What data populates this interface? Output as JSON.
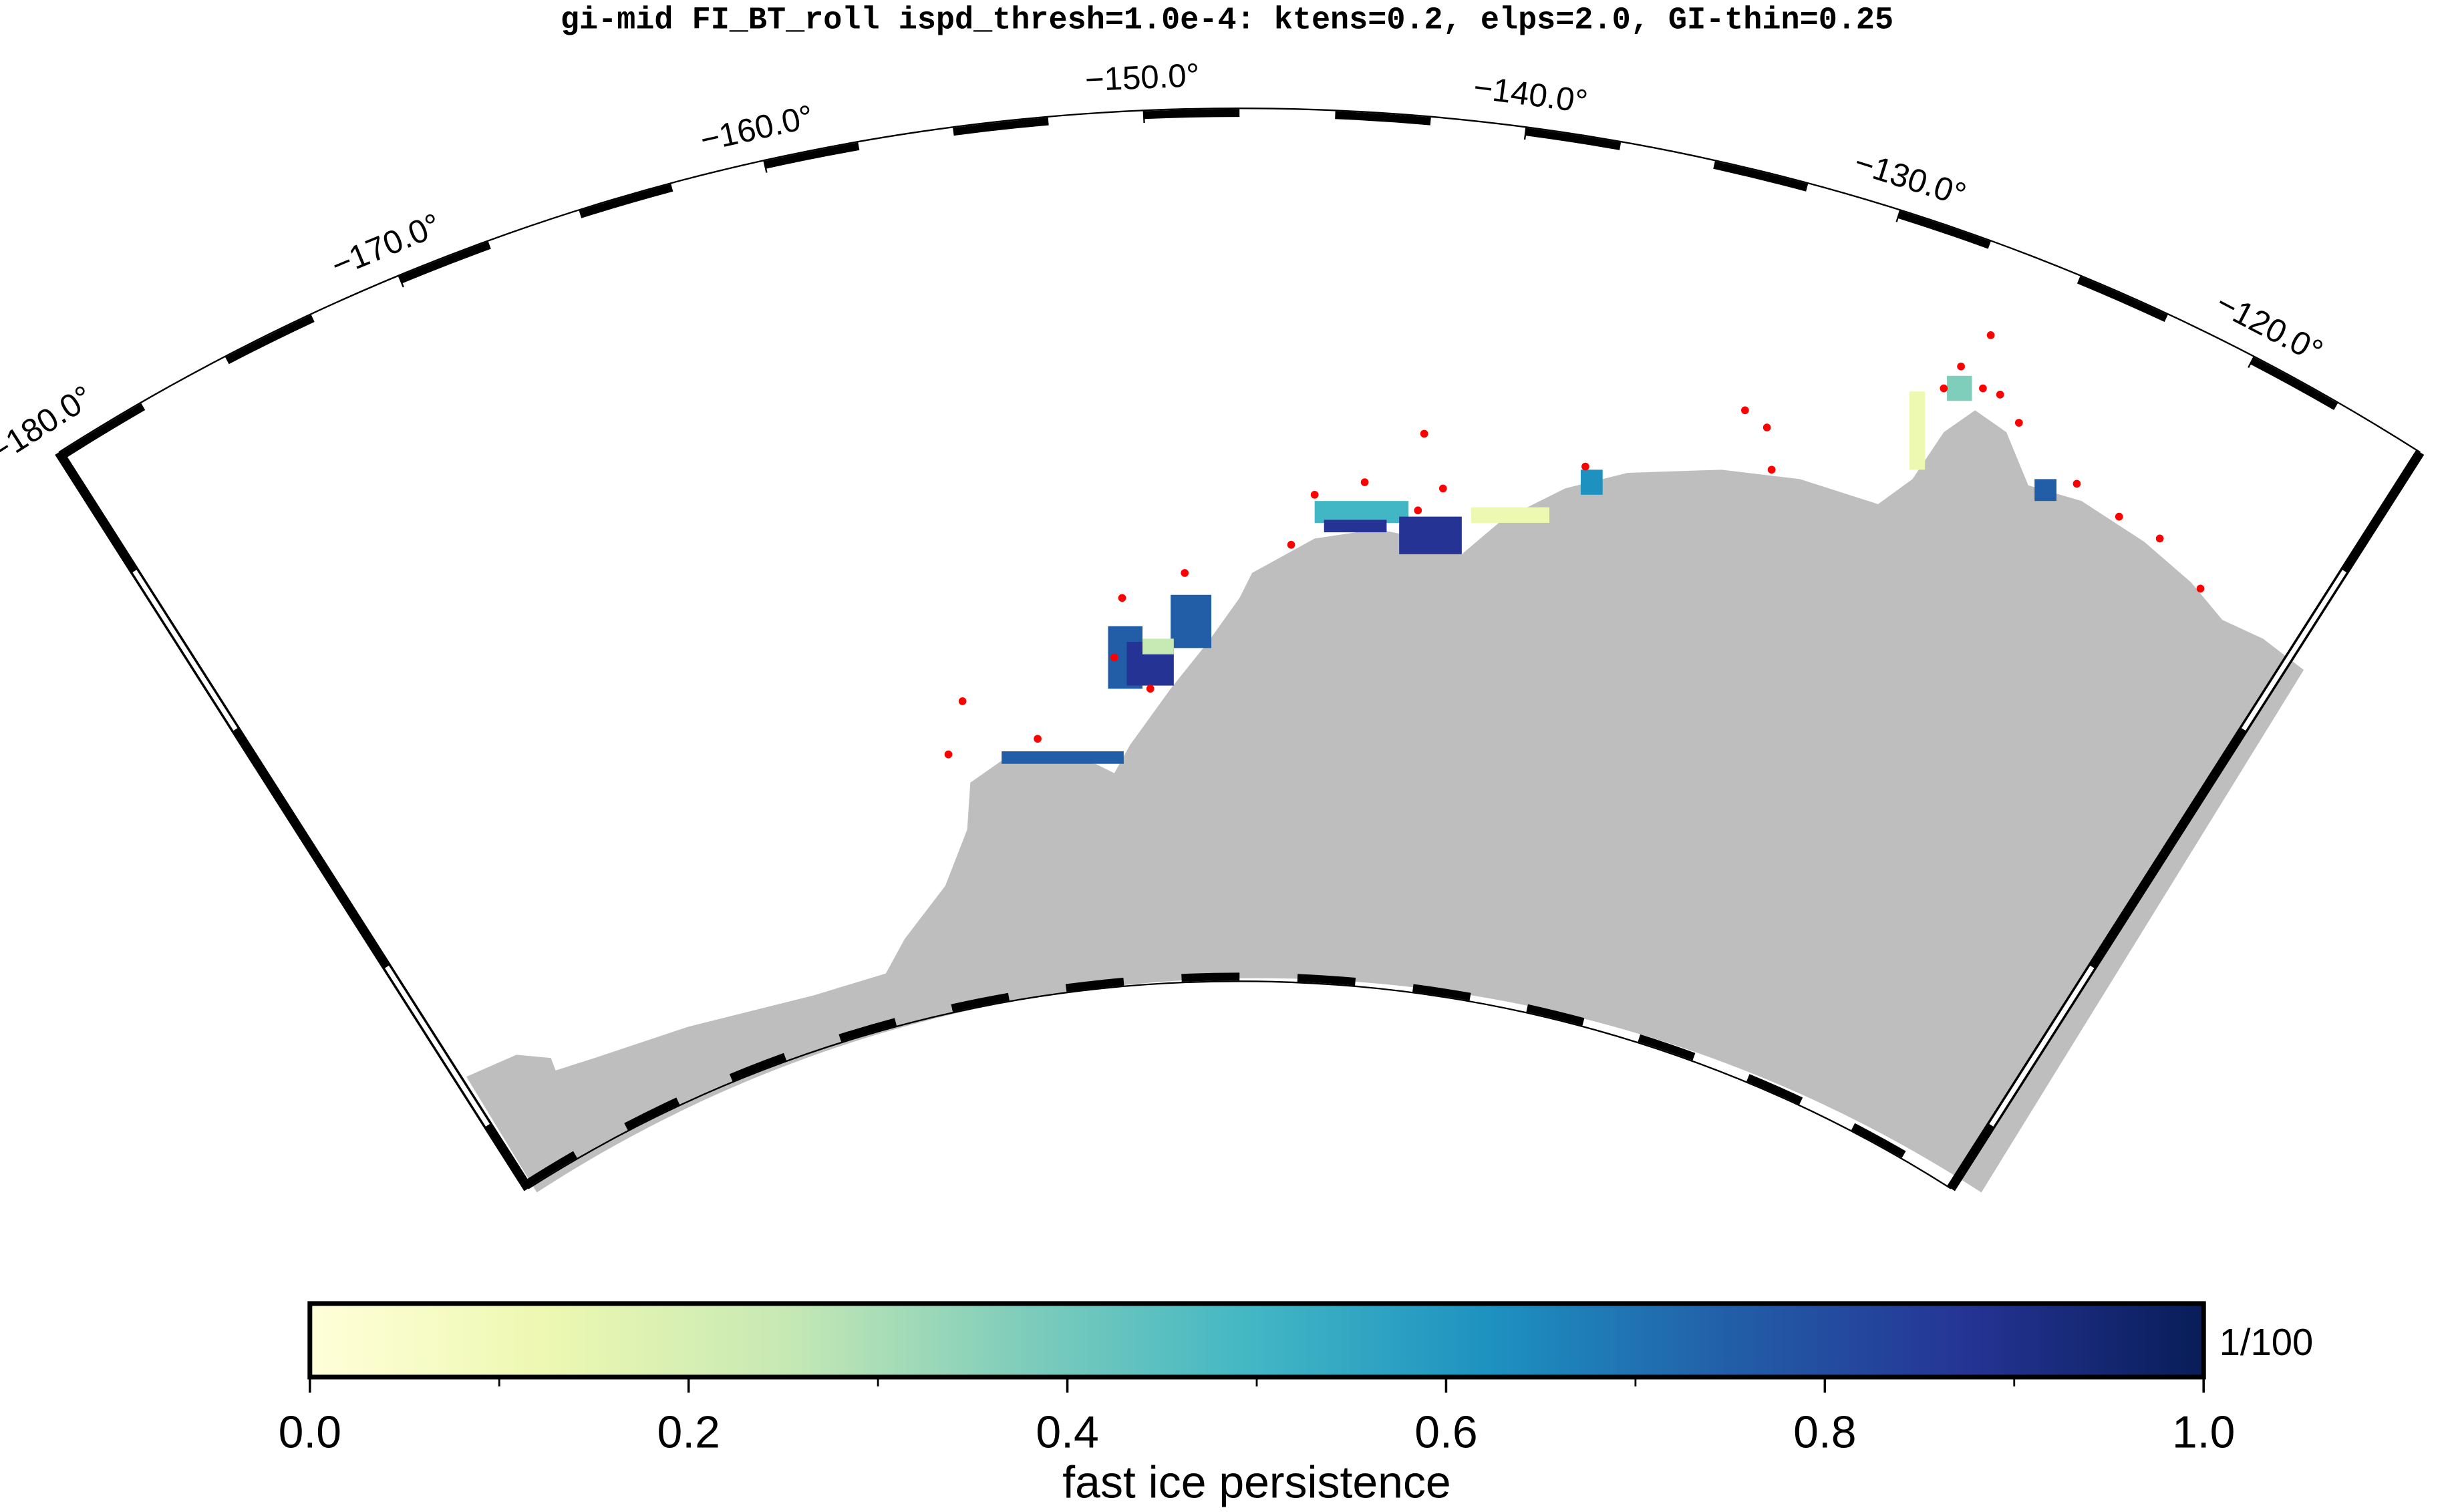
{
  "title": "gi-mid FI_BT_roll ispd_thresh=1.0e-4: ktens=0.2, elps=2.0, GI-thin=0.25",
  "map": {
    "lon_range": [
      -180,
      -115
    ],
    "lon_ticks": [
      {
        "value": -180,
        "label": "−180.0°"
      },
      {
        "value": -170,
        "label": "−170.0°"
      },
      {
        "value": -160,
        "label": "−160.0°"
      },
      {
        "value": -150,
        "label": "−150.0°"
      },
      {
        "value": -140,
        "label": "−140.0°"
      },
      {
        "value": -130,
        "label": "−130.0°"
      },
      {
        "value": -120,
        "label": "−120.0°"
      }
    ]
  },
  "colorbar": {
    "label": "fast ice persistence",
    "unit": "1/100",
    "range": [
      0,
      1
    ],
    "colors": [
      "#ffffd9",
      "#edf8b1",
      "#c7e9b4",
      "#7fcdbb",
      "#41b6c4",
      "#1d91c0",
      "#225ea8",
      "#253494",
      "#081d58"
    ],
    "ticks": [
      {
        "value": 0,
        "label": "0.0"
      },
      0.2,
      0.4,
      0.6,
      0.8,
      {
        "value": 1,
        "label": "1.0"
      }
    ],
    "minor_ticks": [
      0.1,
      0.3,
      0.5,
      0.7,
      0.9
    ]
  }
}
